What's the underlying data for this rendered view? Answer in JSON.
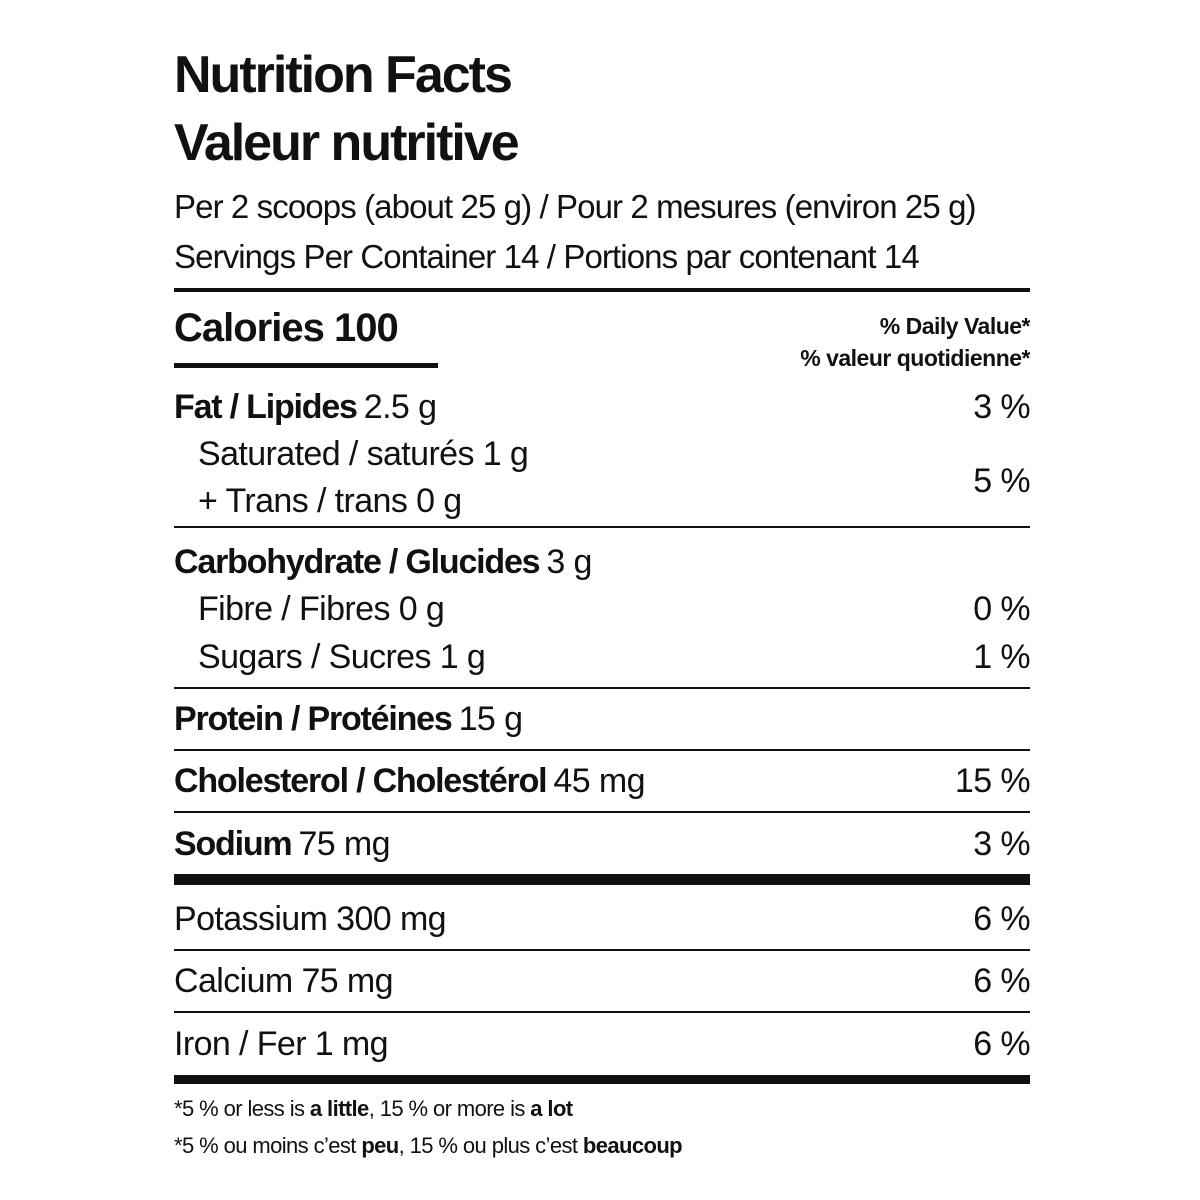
{
  "title": "Nutrition Facts",
  "title_fr": "Valeur nutritive",
  "serving_size": "Per 2 scoops (about 25 g) / Pour 2 mesures (environ 25 g)",
  "servings_per_container": "Servings Per Container 14 / Portions par contenant 14",
  "calories": "Calories 100",
  "daily_value_header": [
    "% Daily Value*",
    "% valeur quotidienne*"
  ],
  "fat": {
    "label": "Fat / Lipides",
    "amount": "2.5 g",
    "dv": "3 %"
  },
  "saturated_trans": {
    "lines": [
      "Saturated / saturés 1 g",
      "+ Trans / trans 0 g"
    ],
    "dv": "5 %"
  },
  "carbohydrate": {
    "label": "Carbohydrate / Glucides",
    "amount": "3 g"
  },
  "fibre": {
    "label": "Fibre / Fibres 0 g",
    "dv": "0 %"
  },
  "sugars": {
    "label": "Sugars / Sucres 1 g",
    "dv": "1 %"
  },
  "protein": {
    "label": "Protein / Protéines",
    "amount": "15 g"
  },
  "cholesterol": {
    "label": "Cholesterol / Cholestérol",
    "amount": "45 mg",
    "dv": "15 %"
  },
  "sodium": {
    "label": "Sodium",
    "amount": "75 mg",
    "dv": "3 %"
  },
  "potassium": {
    "label": "Potassium 300 mg",
    "dv": "6 %"
  },
  "calcium": {
    "label": "Calcium 75 mg",
    "dv": "6 %"
  },
  "iron": {
    "label": "Iron / Fer 1 mg",
    "dv": "6 %"
  },
  "footnotes": [
    [
      "*5 % or less is ",
      "a little",
      ", 15 % or more is ",
      "a lot"
    ],
    [
      "*5 % ou moins c’est ",
      "peu",
      ", 15 % ou plus c’est ",
      "beaucoup"
    ]
  ]
}
